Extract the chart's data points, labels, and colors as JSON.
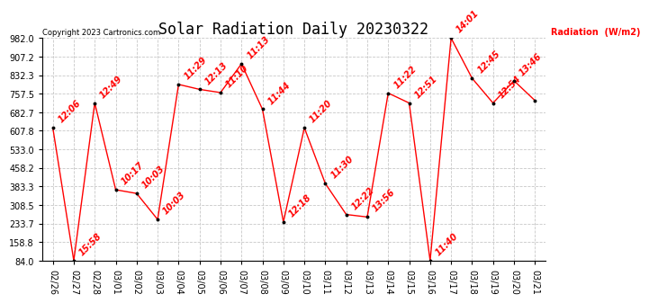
{
  "title": "Solar Radiation Daily 20230322",
  "copyright": "Copyright 2023 Cartronics.com",
  "ylabel": "Radiation  (W/m2)",
  "dates": [
    "02/26",
    "02/27",
    "02/28",
    "03/01",
    "03/02",
    "03/03",
    "03/04",
    "03/05",
    "03/06",
    "03/07",
    "03/08",
    "03/09",
    "03/10",
    "03/11",
    "03/12",
    "03/13",
    "03/14",
    "03/15",
    "03/16",
    "03/17",
    "03/18",
    "03/19",
    "03/20",
    "03/21"
  ],
  "values": [
    620,
    84,
    720,
    370,
    355,
    250,
    795,
    775,
    762,
    878,
    695,
    240,
    620,
    395,
    270,
    260,
    760,
    720,
    84,
    982,
    820,
    720,
    810,
    730
  ],
  "time_labels": [
    "12:06",
    "15:58",
    "12:49",
    "10:17",
    "10:03",
    "10:03",
    "11:29",
    "12:13",
    "11:10",
    "11:13",
    "11:44",
    "12:18",
    "11:20",
    "11:30",
    "12:22",
    "13:56",
    "11:22",
    "12:51",
    "11:40",
    "14:01",
    "12:45",
    "12:54",
    "13:46",
    ""
  ],
  "ylim": [
    84.0,
    982.0
  ],
  "yticks": [
    84.0,
    158.8,
    233.7,
    308.5,
    383.3,
    458.2,
    533.0,
    607.8,
    682.7,
    757.5,
    832.3,
    907.2,
    982.0
  ],
  "line_color": "#ff0000",
  "marker_color": "#000000",
  "label_color": "#ff0000",
  "title_color": "#000000",
  "bg_color": "#ffffff",
  "grid_color": "#c8c8c8",
  "copyright_color": "#000000",
  "title_fontsize": 12,
  "tick_fontsize": 7,
  "label_fontsize": 7,
  "copyright_fontsize": 6
}
